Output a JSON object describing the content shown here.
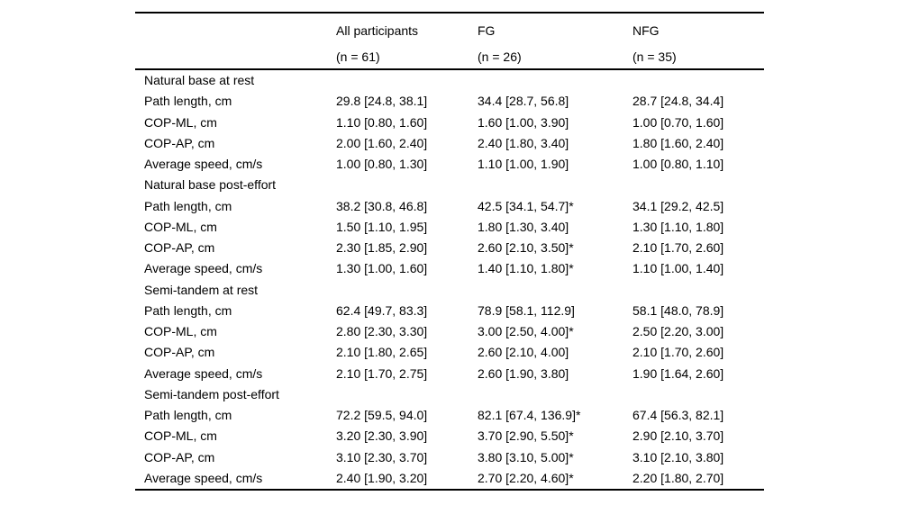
{
  "table": {
    "columns": [
      {
        "label": "All participants",
        "sublabel": "(n = 61)"
      },
      {
        "label": "FG",
        "sublabel": "(n = 26)"
      },
      {
        "label": "NFG",
        "sublabel": "(n = 35)"
      }
    ],
    "sections": [
      {
        "title": "Natural base at rest",
        "rows": [
          {
            "label": "Path length, cm",
            "values": [
              "29.8 [24.8, 38.1]",
              "34.4 [28.7, 56.8]",
              "28.7 [24.8, 34.4]"
            ]
          },
          {
            "label": "COP-ML, cm",
            "values": [
              "1.10 [0.80, 1.60]",
              "1.60 [1.00, 3.90]",
              "1.00 [0.70, 1.60]"
            ]
          },
          {
            "label": "COP-AP, cm",
            "values": [
              "2.00 [1.60, 2.40]",
              "2.40 [1.80, 3.40]",
              "1.80 [1.60, 2.40]"
            ]
          },
          {
            "label": "Average speed, cm/s",
            "values": [
              "1.00 [0.80, 1.30]",
              "1.10 [1.00, 1.90]",
              "1.00 [0.80, 1.10]"
            ]
          }
        ]
      },
      {
        "title": "Natural base post-effort",
        "rows": [
          {
            "label": "Path length, cm",
            "values": [
              "38.2 [30.8, 46.8]",
              "42.5 [34.1, 54.7]*",
              "34.1 [29.2, 42.5]"
            ]
          },
          {
            "label": "COP-ML, cm",
            "values": [
              "1.50 [1.10, 1.95]",
              "1.80 [1.30, 3.40]",
              "1.30 [1.10, 1.80]"
            ]
          },
          {
            "label": "COP-AP, cm",
            "values": [
              "2.30 [1.85, 2.90]",
              "2.60 [2.10, 3.50]*",
              "2.10 [1.70, 2.60]"
            ]
          },
          {
            "label": "Average speed, cm/s",
            "values": [
              "1.30 [1.00, 1.60]",
              "1.40 [1.10, 1.80]*",
              "1.10 [1.00, 1.40]"
            ]
          }
        ]
      },
      {
        "title": "Semi-tandem at rest",
        "rows": [
          {
            "label": "Path length, cm",
            "values": [
              "62.4 [49.7, 83.3]",
              "78.9 [58.1, 112.9]",
              "58.1 [48.0, 78.9]"
            ]
          },
          {
            "label": "COP-ML, cm",
            "values": [
              "2.80 [2.30, 3.30]",
              "3.00 [2.50, 4.00]*",
              "2.50 [2.20, 3.00]"
            ]
          },
          {
            "label": "COP-AP, cm",
            "values": [
              "2.10 [1.80, 2.65]",
              "2.60 [2.10, 4.00]",
              "2.10 [1.70, 2.60]"
            ]
          },
          {
            "label": "Average speed, cm/s",
            "values": [
              "2.10 [1.70, 2.75]",
              "2.60 [1.90, 3.80]",
              "1.90 [1.64, 2.60]"
            ]
          }
        ]
      },
      {
        "title": "Semi-tandem post-effort",
        "rows": [
          {
            "label": "Path length, cm",
            "values": [
              "72.2 [59.5, 94.0]",
              "82.1 [67.4, 136.9]*",
              "67.4 [56.3, 82.1]"
            ]
          },
          {
            "label": "COP-ML, cm",
            "values": [
              "3.20 [2.30, 3.90]",
              "3.70 [2.90, 5.50]*",
              "2.90 [2.10, 3.70]"
            ]
          },
          {
            "label": "COP-AP, cm",
            "values": [
              "3.10 [2.30, 3.70]",
              "3.80 [3.10, 5.00]*",
              "3.10 [2.10, 3.80]"
            ]
          },
          {
            "label": "Average speed, cm/s",
            "values": [
              "2.40 [1.90, 3.20]",
              "2.70 [2.20, 4.60]*",
              "2.20 [1.80, 2.70]"
            ]
          }
        ]
      }
    ]
  }
}
